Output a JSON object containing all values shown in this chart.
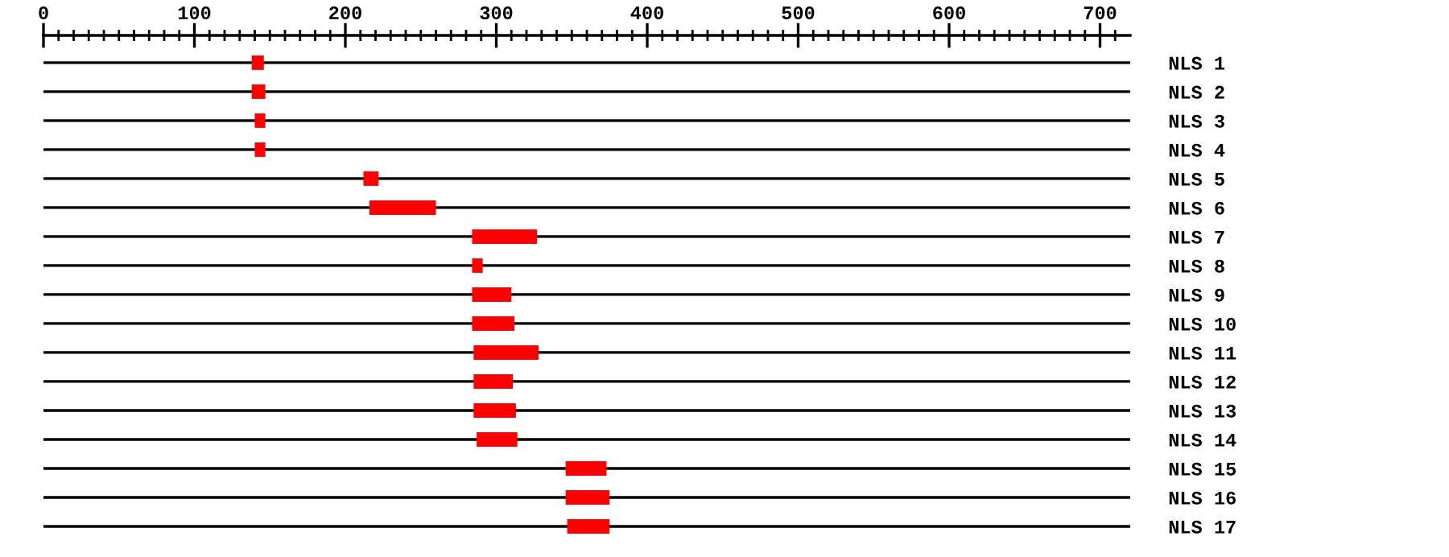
{
  "chart_data": {
    "type": "bar",
    "orientation": "horizontal",
    "categories": [
      "NLS 1",
      "NLS 2",
      "NLS 3",
      "NLS 4",
      "NLS 5",
      "NLS 6",
      "NLS 7",
      "NLS 8",
      "NLS 9",
      "NLS 10",
      "NLS 11",
      "NLS 12",
      "NLS 13",
      "NLS 14",
      "NLS 15",
      "NLS 16",
      "NLS 17"
    ],
    "base": [
      138,
      138,
      140,
      140,
      212,
      216,
      284,
      284,
      284,
      284,
      285,
      285,
      285,
      287,
      346,
      346,
      347
    ],
    "values": [
      8,
      9,
      7,
      7,
      10,
      44,
      43,
      7,
      26,
      28,
      43,
      26,
      28,
      27,
      27,
      29,
      28
    ],
    "color": "#ff0000",
    "xlim": [
      0,
      720
    ],
    "xticks": [
      0,
      {
        "value": 10,
        "label": null
      },
      {
        "value": 20,
        "label": null
      },
      {
        "value": 30,
        "label": null
      },
      {
        "value": 40,
        "label": null
      },
      {
        "value": 50,
        "label": null
      },
      {
        "value": 60,
        "label": null
      },
      {
        "value": 70,
        "label": null
      },
      {
        "value": 80,
        "label": null
      },
      {
        "value": 90,
        "label": null
      },
      100,
      {
        "value": 110,
        "label": null
      },
      {
        "value": 120,
        "label": null
      },
      {
        "value": 130,
        "label": null
      },
      {
        "value": 140,
        "label": null
      },
      {
        "value": 150,
        "label": null
      },
      {
        "value": 160,
        "label": null
      },
      {
        "value": 170,
        "label": null
      },
      {
        "value": 180,
        "label": null
      },
      {
        "value": 190,
        "label": null
      },
      200,
      {
        "value": 210,
        "label": null
      },
      {
        "value": 220,
        "label": null
      },
      {
        "value": 230,
        "label": null
      },
      {
        "value": 240,
        "label": null
      },
      {
        "value": 250,
        "label": null
      },
      {
        "value": 260,
        "label": null
      },
      {
        "value": 270,
        "label": null
      },
      {
        "value": 280,
        "label": null
      },
      {
        "value": 290,
        "label": null
      },
      300,
      {
        "value": 310,
        "label": null
      },
      {
        "value": 320,
        "label": null
      },
      {
        "value": 330,
        "label": null
      },
      {
        "value": 340,
        "label": null
      },
      {
        "value": 350,
        "label": null
      },
      {
        "value": 360,
        "label": null
      },
      {
        "value": 370,
        "label": null
      },
      {
        "value": 380,
        "label": null
      },
      {
        "value": 390,
        "label": null
      },
      400,
      {
        "value": 410,
        "label": null
      },
      {
        "value": 420,
        "label": null
      },
      {
        "value": 430,
        "label": null
      },
      {
        "value": 440,
        "label": null
      },
      {
        "value": 450,
        "label": null
      },
      {
        "value": 460,
        "label": null
      },
      {
        "value": 470,
        "label": null
      },
      {
        "value": 480,
        "label": null
      },
      {
        "value": 490,
        "label": null
      },
      500,
      {
        "value": 510,
        "label": null
      },
      {
        "value": 520,
        "label": null
      },
      {
        "value": 530,
        "label": null
      },
      {
        "value": 540,
        "label": null
      },
      {
        "value": 550,
        "label": null
      },
      {
        "value": 560,
        "label": null
      },
      {
        "value": 570,
        "label": null
      },
      {
        "value": 580,
        "label": null
      },
      {
        "value": 590,
        "label": null
      },
      600,
      {
        "value": 610,
        "label": null
      },
      {
        "value": 620,
        "label": null
      },
      {
        "value": 630,
        "label": null
      },
      {
        "value": 640,
        "label": null
      },
      {
        "value": 650,
        "label": null
      },
      {
        "value": 660,
        "label": null
      },
      {
        "value": 670,
        "label": null
      },
      {
        "value": 680,
        "label": null
      },
      {
        "value": 690,
        "label": null
      },
      700,
      {
        "value": 710,
        "label": null
      }
    ],
    "grid": "y"
  }
}
